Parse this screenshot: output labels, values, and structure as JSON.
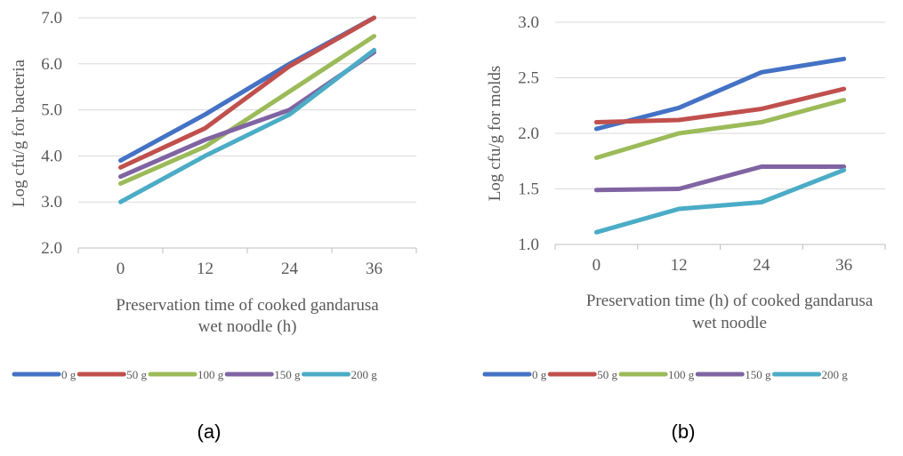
{
  "chart_data": [
    {
      "type": "line",
      "x": [
        0,
        12,
        24,
        36
      ],
      "categories": [
        "0",
        "12",
        "24",
        "36"
      ],
      "ylim": [
        2.0,
        7.0
      ],
      "yticks": [
        "2.0",
        "3.0",
        "4.0",
        "5.0",
        "6.0",
        "7.0"
      ],
      "ylabel": "Log cfu/g for bacteria",
      "xlabel": [
        "Preservation time of cooked gandarusa",
        "wet noodle (h)"
      ],
      "caption": "(a)",
      "grid": "horizontal",
      "legend_position": "bottom",
      "series": [
        {
          "name": "0 g",
          "color": "#4472C4",
          "values": [
            3.9,
            4.9,
            6.0,
            7.0
          ]
        },
        {
          "name": "50 g",
          "color": "#C0504D",
          "values": [
            3.75,
            4.6,
            5.95,
            7.0
          ]
        },
        {
          "name": "100 g",
          "color": "#9BBB59",
          "values": [
            3.4,
            4.2,
            5.4,
            6.6
          ]
        },
        {
          "name": "150 g",
          "color": "#8064A2",
          "values": [
            3.55,
            4.35,
            5.0,
            6.25
          ]
        },
        {
          "name": "200 g",
          "color": "#4BACC6",
          "values": [
            3.0,
            4.0,
            4.9,
            6.3
          ]
        }
      ]
    },
    {
      "type": "line",
      "x": [
        0,
        12,
        24,
        36
      ],
      "categories": [
        "0",
        "12",
        "24",
        "36"
      ],
      "ylim": [
        1.0,
        3.0
      ],
      "yticks": [
        "1.0",
        "1.5",
        "2.0",
        "2.5",
        "3.0"
      ],
      "ylabel": "Log cfu/g for molds",
      "xlabel": [
        "Preservation time (h) of cooked gandarusa",
        "wet noodle"
      ],
      "caption": "(b)",
      "grid": "horizontal",
      "legend_position": "bottom",
      "series": [
        {
          "name": "0 g",
          "color": "#4472C4",
          "values": [
            2.04,
            2.23,
            2.55,
            2.67
          ]
        },
        {
          "name": "50 g",
          "color": "#C0504D",
          "values": [
            2.1,
            2.12,
            2.22,
            2.4
          ]
        },
        {
          "name": "100 g",
          "color": "#9BBB59",
          "values": [
            1.78,
            2.0,
            2.1,
            2.3
          ]
        },
        {
          "name": "150 g",
          "color": "#8064A2",
          "values": [
            1.49,
            1.5,
            1.7,
            1.7
          ]
        },
        {
          "name": "200 g",
          "color": "#4BACC6",
          "values": [
            1.11,
            1.32,
            1.38,
            1.67
          ]
        }
      ]
    }
  ]
}
